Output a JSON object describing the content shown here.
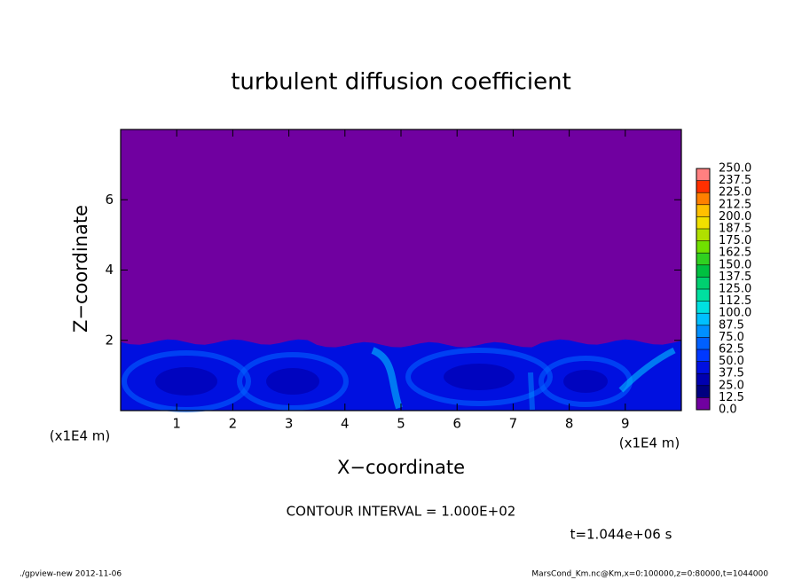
{
  "chart_data": {
    "type": "contour",
    "title": "turbulent diffusion coefficient",
    "x_label": "X−coordinate",
    "y_label": "Z−coordinate",
    "x_unit": "(x1E4 m)",
    "xlim": [
      0,
      10
    ],
    "xticks": [
      1,
      2,
      3,
      4,
      5,
      6,
      7,
      8,
      9
    ],
    "ylim": [
      0,
      8
    ],
    "yticks": [
      2,
      4,
      6
    ],
    "colorbar_levels": [
      {
        "value": 0,
        "label": "0.0"
      },
      {
        "value": 12.5,
        "label": "12.5"
      },
      {
        "value": 25,
        "label": "25.0"
      },
      {
        "value": 37.5,
        "label": "37.5"
      },
      {
        "value": 50,
        "label": "50.0"
      },
      {
        "value": 62.5,
        "label": "62.5"
      },
      {
        "value": 75,
        "label": "75.0"
      },
      {
        "value": 87.5,
        "label": "87.5"
      },
      {
        "value": 100,
        "label": "100.0"
      },
      {
        "value": 112.5,
        "label": "112.5"
      },
      {
        "value": 125,
        "label": "125.0"
      },
      {
        "value": 137.5,
        "label": "137.5"
      },
      {
        "value": 150,
        "label": "150.0"
      },
      {
        "value": 162.5,
        "label": "162.5"
      },
      {
        "value": 175,
        "label": "175.0"
      },
      {
        "value": 187.5,
        "label": "187.5"
      },
      {
        "value": 200,
        "label": "200.0"
      },
      {
        "value": 212.5,
        "label": "212.5"
      },
      {
        "value": 225,
        "label": "225.0"
      },
      {
        "value": 237.5,
        "label": "237.5"
      },
      {
        "value": 250,
        "label": "250.0"
      }
    ],
    "colorbar_colors": [
      "#7000a0",
      "#000080",
      "#0000b0",
      "#0010e0",
      "#0038ff",
      "#0060ff",
      "#0090ff",
      "#00c0ff",
      "#00e0e0",
      "#00e0a0",
      "#00d070",
      "#00c040",
      "#30d020",
      "#70e000",
      "#b0e000",
      "#f0e000",
      "#ffc000",
      "#ff8000",
      "#ff3000",
      "#ff8080"
    ],
    "contour_interval": "CONTOUR INTERVAL = 1.000E+02",
    "time_label": "t=1.044e+06 s",
    "footer_left": "./gpview-new  2012-11-06",
    "footer_right": "MarsCond_Km.nc@Km,x=0:100000,z=0:80000,t=1044000"
  }
}
